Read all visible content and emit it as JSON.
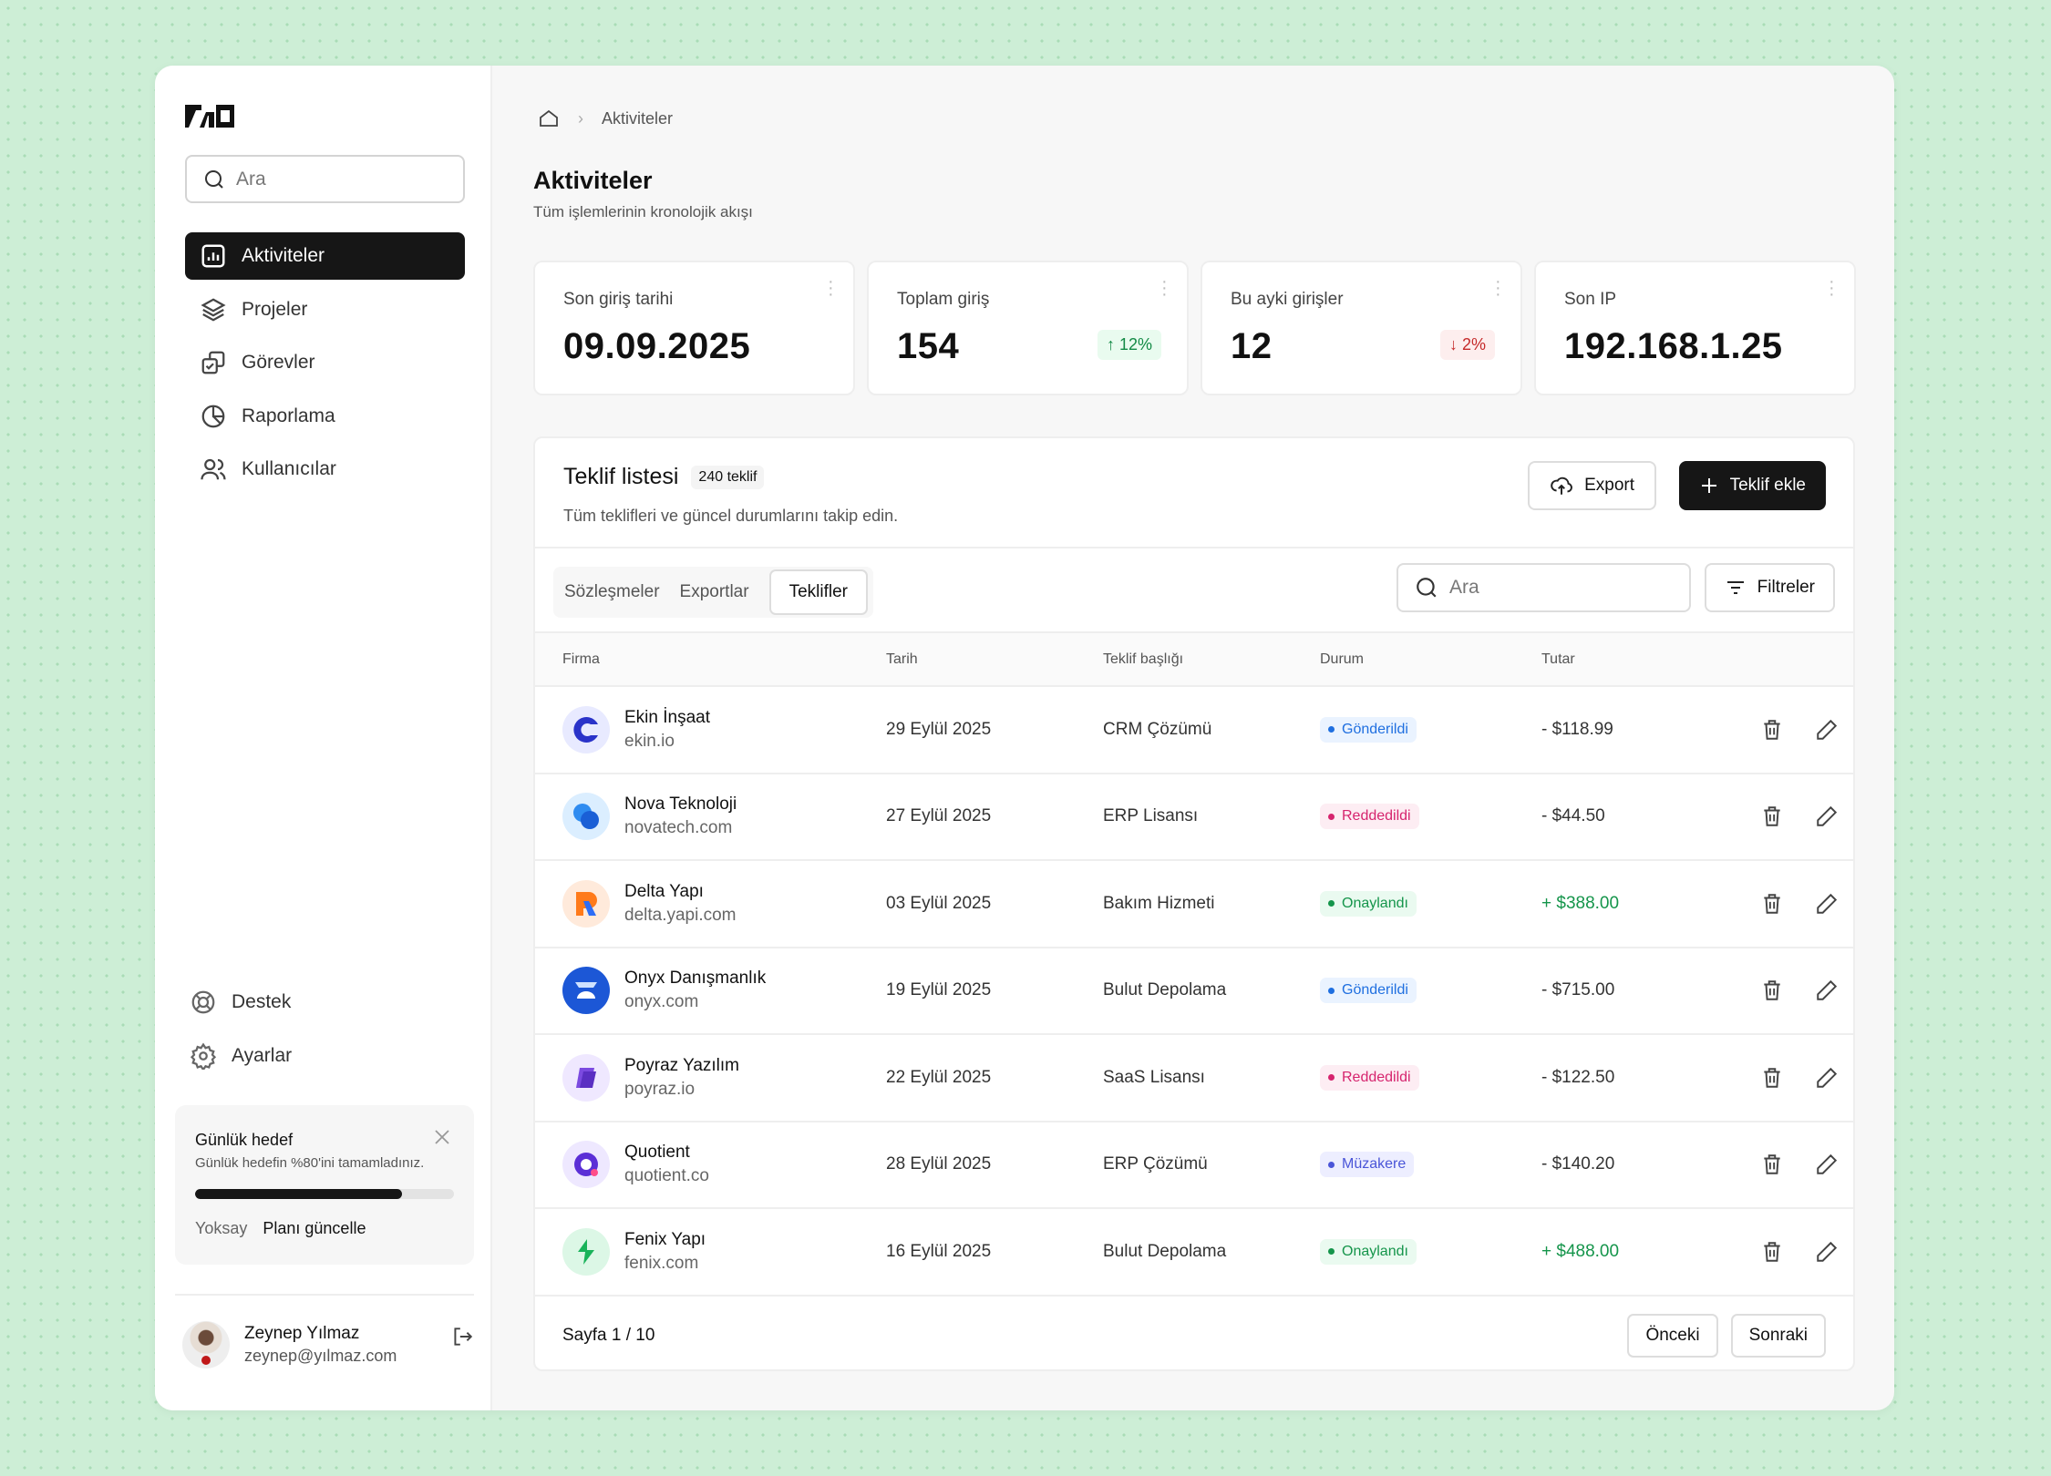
{
  "sidebar": {
    "search_placeholder": "Ara",
    "nav": [
      {
        "label": "Aktiviteler",
        "icon": "chart-icon"
      },
      {
        "label": "Projeler",
        "icon": "layers-icon"
      },
      {
        "label": "Görevler",
        "icon": "tasks-icon"
      },
      {
        "label": "Raporlama",
        "icon": "pie-icon"
      },
      {
        "label": "Kullanıcılar",
        "icon": "users-icon"
      }
    ],
    "bottom": [
      {
        "label": "Destek",
        "icon": "lifebuoy-icon"
      },
      {
        "label": "Ayarlar",
        "icon": "gear-icon"
      }
    ],
    "goal": {
      "title": "Günlük hedef",
      "text": "Günlük hedefin %80'ini tamamladınız.",
      "progress": 80,
      "dismiss": "Yoksay",
      "update": "Planı güncelle"
    },
    "user": {
      "name": "Zeynep Yılmaz",
      "email": "zeynep@yılmaz.com"
    }
  },
  "breadcrumb": {
    "current": "Aktiviteler"
  },
  "page": {
    "title": "Aktiviteler",
    "subtitle": "Tüm işlemlerinin kronolojik akışı"
  },
  "stats": [
    {
      "label": "Son giriş tarihi",
      "value": "09.09.2025"
    },
    {
      "label": "Toplam giriş",
      "value": "154",
      "change": "12%",
      "dir": "up"
    },
    {
      "label": "Bu ayki girişler",
      "value": "12",
      "change": "2%",
      "dir": "down"
    },
    {
      "label": "Son IP",
      "value": "192.168.1.25"
    }
  ],
  "table": {
    "title": "Teklif listesi",
    "count": "240 teklif",
    "subtitle": "Tüm teklifleri ve güncel durumlarını takip edin.",
    "export": "Export",
    "add": "Teklif ekle",
    "tabs": [
      "Sözleşmeler",
      "Exportlar",
      "Teklifler"
    ],
    "search_placeholder": "Ara",
    "filters": "Filtreler",
    "columns": [
      "Firma",
      "Tarih",
      "Teklif başlığı",
      "Durum",
      "Tutar"
    ],
    "rows": [
      {
        "name": "Ekin İnşaat",
        "domain": "ekin.io",
        "date": "29 Eylül 2025",
        "title": "CRM Çözümü",
        "status": "Gönderildi",
        "amount": "- $118.99"
      },
      {
        "name": "Nova Teknoloji",
        "domain": "novatech.com",
        "date": "27 Eylül 2025",
        "title": "ERP Lisansı",
        "status": "Reddedildi",
        "amount": "- $44.50"
      },
      {
        "name": "Delta Yapı",
        "domain": "delta.yapi.com",
        "date": "03 Eylül 2025",
        "title": "Bakım Hizmeti",
        "status": "Onaylandı",
        "amount": "+ $388.00"
      },
      {
        "name": "Onyx Danışmanlık",
        "domain": "onyx.com",
        "date": "19 Eylül 2025",
        "title": "Bulut Depolama",
        "status": "Gönderildi",
        "amount": "- $715.00"
      },
      {
        "name": "Poyraz Yazılım",
        "domain": "poyraz.io",
        "date": "22 Eylül 2025",
        "title": "SaaS Lisansı",
        "status": "Reddedildi",
        "amount": "- $122.50"
      },
      {
        "name": "Quotient",
        "domain": "quotient.co",
        "date": "28 Eylül 2025",
        "title": "ERP Çözümü",
        "status": "Müzakere",
        "amount": "- $140.20"
      },
      {
        "name": "Fenix Yapı",
        "domain": "fenix.com",
        "date": "16 Eylül 2025",
        "title": "Bulut Depolama",
        "status": "Onaylandı",
        "amount": "+ $488.00"
      }
    ],
    "page_info": "Sayfa 1 / 10",
    "prev": "Önceki",
    "next": "Sonraki"
  },
  "colors": {
    "sent": "#1f6fe0",
    "rejected": "#d6246e",
    "approved": "#15954b",
    "negotiation": "#4a55d8"
  }
}
